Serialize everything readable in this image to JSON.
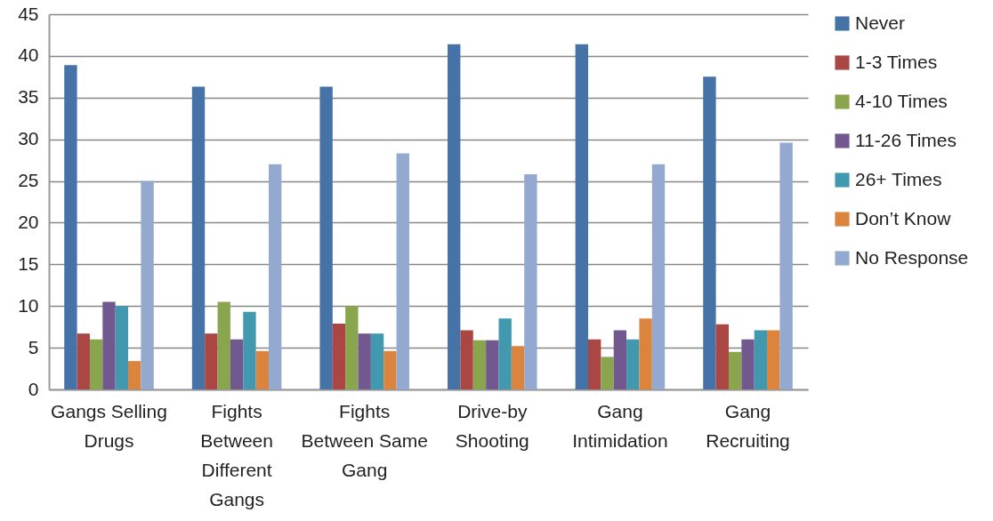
{
  "chart_data": {
    "type": "bar",
    "categories": [
      "Gangs Selling Drugs",
      "Fights Between Different Gangs",
      "Fights Between Same Gang",
      "Drive-by Shooting",
      "Gang Intimidation",
      "Gang Recruiting"
    ],
    "series": [
      {
        "name": "Never",
        "color": "#4572a7",
        "values": [
          38.9,
          36.3,
          36.3,
          41.4,
          41.4,
          37.5
        ]
      },
      {
        "name": "1-3 Times",
        "color": "#aa4643",
        "values": [
          6.7,
          6.7,
          7.9,
          7.1,
          6.0,
          7.8
        ]
      },
      {
        "name": "4-10 Times",
        "color": "#89a54e",
        "values": [
          6.0,
          10.5,
          10.0,
          5.9,
          3.9,
          4.5
        ]
      },
      {
        "name": "11-26 Times",
        "color": "#71588f",
        "values": [
          10.5,
          6.0,
          6.7,
          5.9,
          7.1,
          6.0
        ]
      },
      {
        "name": "26+ Times",
        "color": "#4198af",
        "values": [
          10.0,
          9.3,
          6.7,
          8.5,
          6.0,
          7.1
        ]
      },
      {
        "name": "Don’t Know",
        "color": "#db843d",
        "values": [
          3.4,
          4.6,
          4.6,
          5.2,
          8.5,
          7.1
        ]
      },
      {
        "name": "No Response",
        "color": "#93a9cf",
        "values": [
          25.0,
          27.0,
          28.3,
          25.8,
          27.0,
          29.6
        ]
      }
    ],
    "ylim": [
      0,
      45
    ],
    "yticks": [
      0,
      5,
      10,
      15,
      20,
      25,
      30,
      35,
      40,
      45
    ],
    "grid": "y",
    "legend": "right"
  }
}
